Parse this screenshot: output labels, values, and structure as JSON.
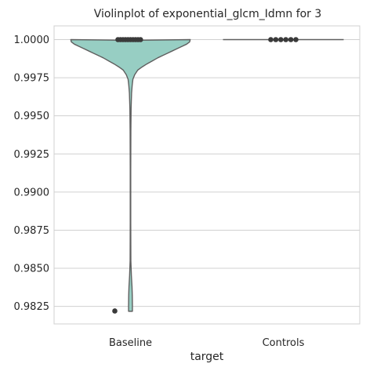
{
  "chart_data": {
    "type": "violin",
    "title": "Violinplot of exponential_glcm_Idmn for 3",
    "xlabel": "target",
    "ylabel": "",
    "categories": [
      "Baseline",
      "Controls"
    ],
    "ylim": [
      0.98135,
      1.0009
    ],
    "yticks": [
      0.9825,
      0.985,
      0.9875,
      0.99,
      0.9925,
      0.995,
      0.9975,
      1.0
    ],
    "ytick_labels": [
      "0.9825",
      "0.9850",
      "0.9875",
      "0.9900",
      "0.9925",
      "0.9950",
      "0.9975",
      "1.0000"
    ],
    "grid": "horizontal",
    "colors": {
      "Baseline": "#97cec3",
      "Controls": "#97cec3",
      "outline": "#5f5f5f",
      "grid": "#d0d0d0",
      "points": "#3a3a3a"
    },
    "violins": [
      {
        "category": "Baseline",
        "profile": [
          [
            0.99995,
            0.0
          ],
          [
            1.0,
            0.99
          ],
          [
            0.99985,
            0.98
          ],
          [
            0.9997,
            0.93
          ],
          [
            0.99955,
            0.85
          ],
          [
            0.9994,
            0.77
          ],
          [
            0.99925,
            0.69
          ],
          [
            0.9991,
            0.61
          ],
          [
            0.99895,
            0.53
          ],
          [
            0.9988,
            0.45
          ],
          [
            0.9986,
            0.36
          ],
          [
            0.9984,
            0.27
          ],
          [
            0.9982,
            0.19
          ],
          [
            0.998,
            0.12
          ],
          [
            0.9977,
            0.07
          ],
          [
            0.9974,
            0.04
          ],
          [
            0.997,
            0.028
          ],
          [
            0.9965,
            0.018
          ],
          [
            0.9955,
            0.01
          ],
          [
            0.994,
            0.006
          ],
          [
            0.9915,
            0.004
          ],
          [
            0.988,
            0.004
          ],
          [
            0.9855,
            0.006
          ],
          [
            0.9845,
            0.015
          ],
          [
            0.9838,
            0.025
          ],
          [
            0.9832,
            0.03
          ],
          [
            0.9826,
            0.032
          ],
          [
            0.9822,
            0.032
          ],
          [
            0.98218,
            0.032
          ]
        ],
        "points": [
          1.0,
          1.0,
          1.0,
          1.0,
          1.0,
          1.0,
          1.0,
          1.0,
          1.0,
          1.0,
          0.9822
        ]
      },
      {
        "category": "Controls",
        "profile": [],
        "points": [
          1.0,
          1.0,
          1.0,
          1.0,
          1.0,
          1.0
        ]
      }
    ]
  }
}
